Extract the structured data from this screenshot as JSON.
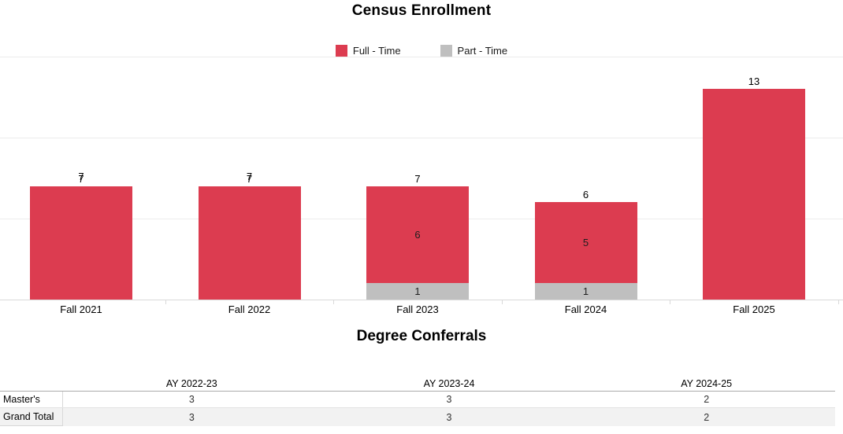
{
  "chart_data": [
    {
      "type": "bar",
      "stacked": true,
      "title": "Census Enrollment",
      "categories": [
        "Fall 2021",
        "Fall 2022",
        "Fall 2023",
        "Fall 2024",
        "Fall 2025"
      ],
      "series": [
        {
          "name": "Full - Time",
          "color": "#DC3C50",
          "values": [
            7,
            7,
            6,
            5,
            13
          ]
        },
        {
          "name": "Part - Time",
          "color": "#BFBFBF",
          "values": [
            0,
            0,
            1,
            1,
            0
          ]
        }
      ],
      "totals": [
        7,
        7,
        7,
        6,
        13
      ],
      "total_label_doubled": [
        true,
        true,
        false,
        false,
        false
      ],
      "segment_labels_visible": [
        false,
        false,
        true,
        true,
        false
      ],
      "segment_labels": {
        "full_time": [
          "",
          "",
          "6",
          "5",
          ""
        ],
        "part_time": [
          "",
          "",
          "1",
          "1",
          ""
        ]
      },
      "xlabel": "",
      "ylabel": "",
      "ylim": [
        0,
        15
      ],
      "gridlines": [
        5,
        10,
        15
      ],
      "grid": true,
      "y_axis_labels_visible": false,
      "legend_position": "top"
    },
    {
      "type": "table",
      "title": "Degree Conferrals",
      "columns": [
        "AY 2022-23",
        "AY 2023-24",
        "AY 2024-25"
      ],
      "rows": [
        {
          "label": "Master's",
          "values": [
            3,
            3,
            2
          ]
        },
        {
          "label": "Grand Total",
          "values": [
            3,
            3,
            2
          ]
        }
      ]
    }
  ],
  "colors": {
    "full_time": "#DC3C50",
    "part_time": "#BFBFBF",
    "gridline": "#ececec",
    "axis_line": "#d9d9d9",
    "grand_total_row_bg": "#f2f2f2"
  }
}
